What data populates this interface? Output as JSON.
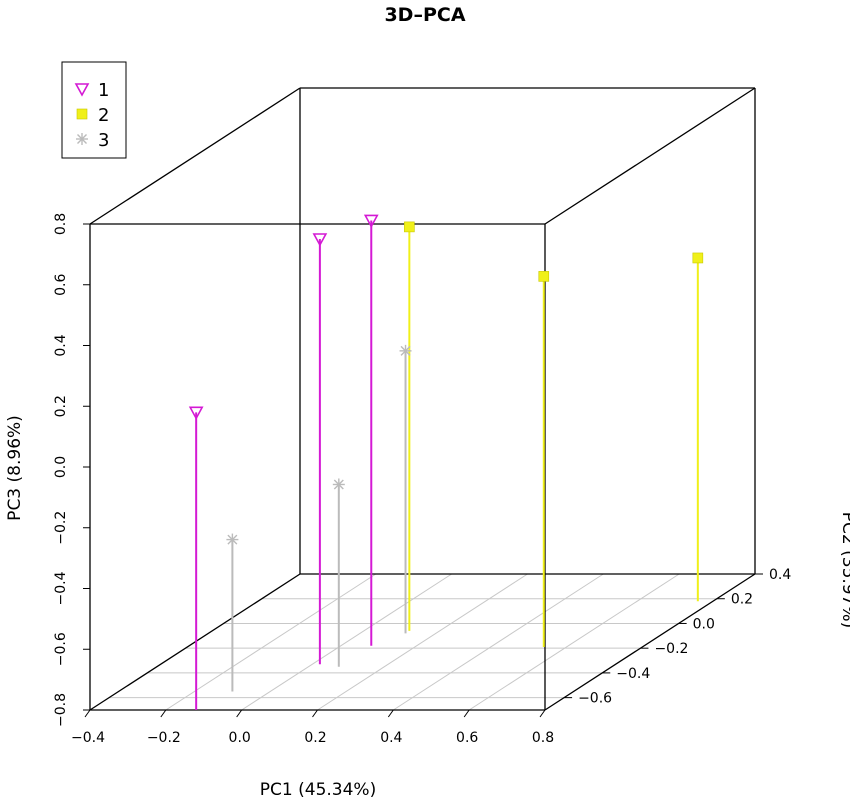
{
  "chart_data": {
    "type": "scatter",
    "title": "3D–PCA",
    "xlabel": "PC1 (45.34%)",
    "ylabel": "PC2 (35.97%)",
    "zlabel": "PC3 (8.96%)",
    "x_ticks": [
      "−0.4",
      "−0.2",
      "0.0",
      "0.2",
      "0.4",
      "0.6",
      "0.8"
    ],
    "y_ticks": [
      "−0.6",
      "−0.4",
      "−0.2",
      "0.0",
      "0.2",
      "0.4"
    ],
    "z_ticks": [
      "−0.8",
      "−0.6",
      "−0.4",
      "−0.2",
      "0.0",
      "0.2",
      "0.4",
      "0.6",
      "0.8"
    ],
    "xlim": [
      -0.4,
      0.8
    ],
    "ylim": [
      -0.7,
      0.4
    ],
    "zlim": [
      -0.8,
      0.8
    ],
    "type_detail": "3d-scatter-with-drop-lines",
    "grid": "floor",
    "legend_position": "top-left",
    "series": [
      {
        "name": "1",
        "color": "#d419d4",
        "marker": "triangle-down-open",
        "points": [
          {
            "x": -0.12,
            "y": -0.7,
            "z": 0.18
          },
          {
            "x": 0.02,
            "y": -0.33,
            "z": 0.6
          },
          {
            "x": 0.08,
            "y": -0.18,
            "z": 0.6
          }
        ]
      },
      {
        "name": "2",
        "color": "#f0f01a",
        "marker": "square",
        "points": [
          {
            "x": 0.12,
            "y": -0.06,
            "z": 0.53
          },
          {
            "x": 0.54,
            "y": -0.19,
            "z": 0.42
          },
          {
            "x": 0.76,
            "y": 0.18,
            "z": 0.33
          }
        ]
      },
      {
        "name": "3",
        "color": "#bbbbbb",
        "marker": "asterisk",
        "points": [
          {
            "x": -0.1,
            "y": -0.55,
            "z": -0.3
          },
          {
            "x": 0.08,
            "y": -0.35,
            "z": -0.2
          },
          {
            "x": 0.12,
            "y": -0.08,
            "z": 0.13
          }
        ]
      }
    ]
  }
}
